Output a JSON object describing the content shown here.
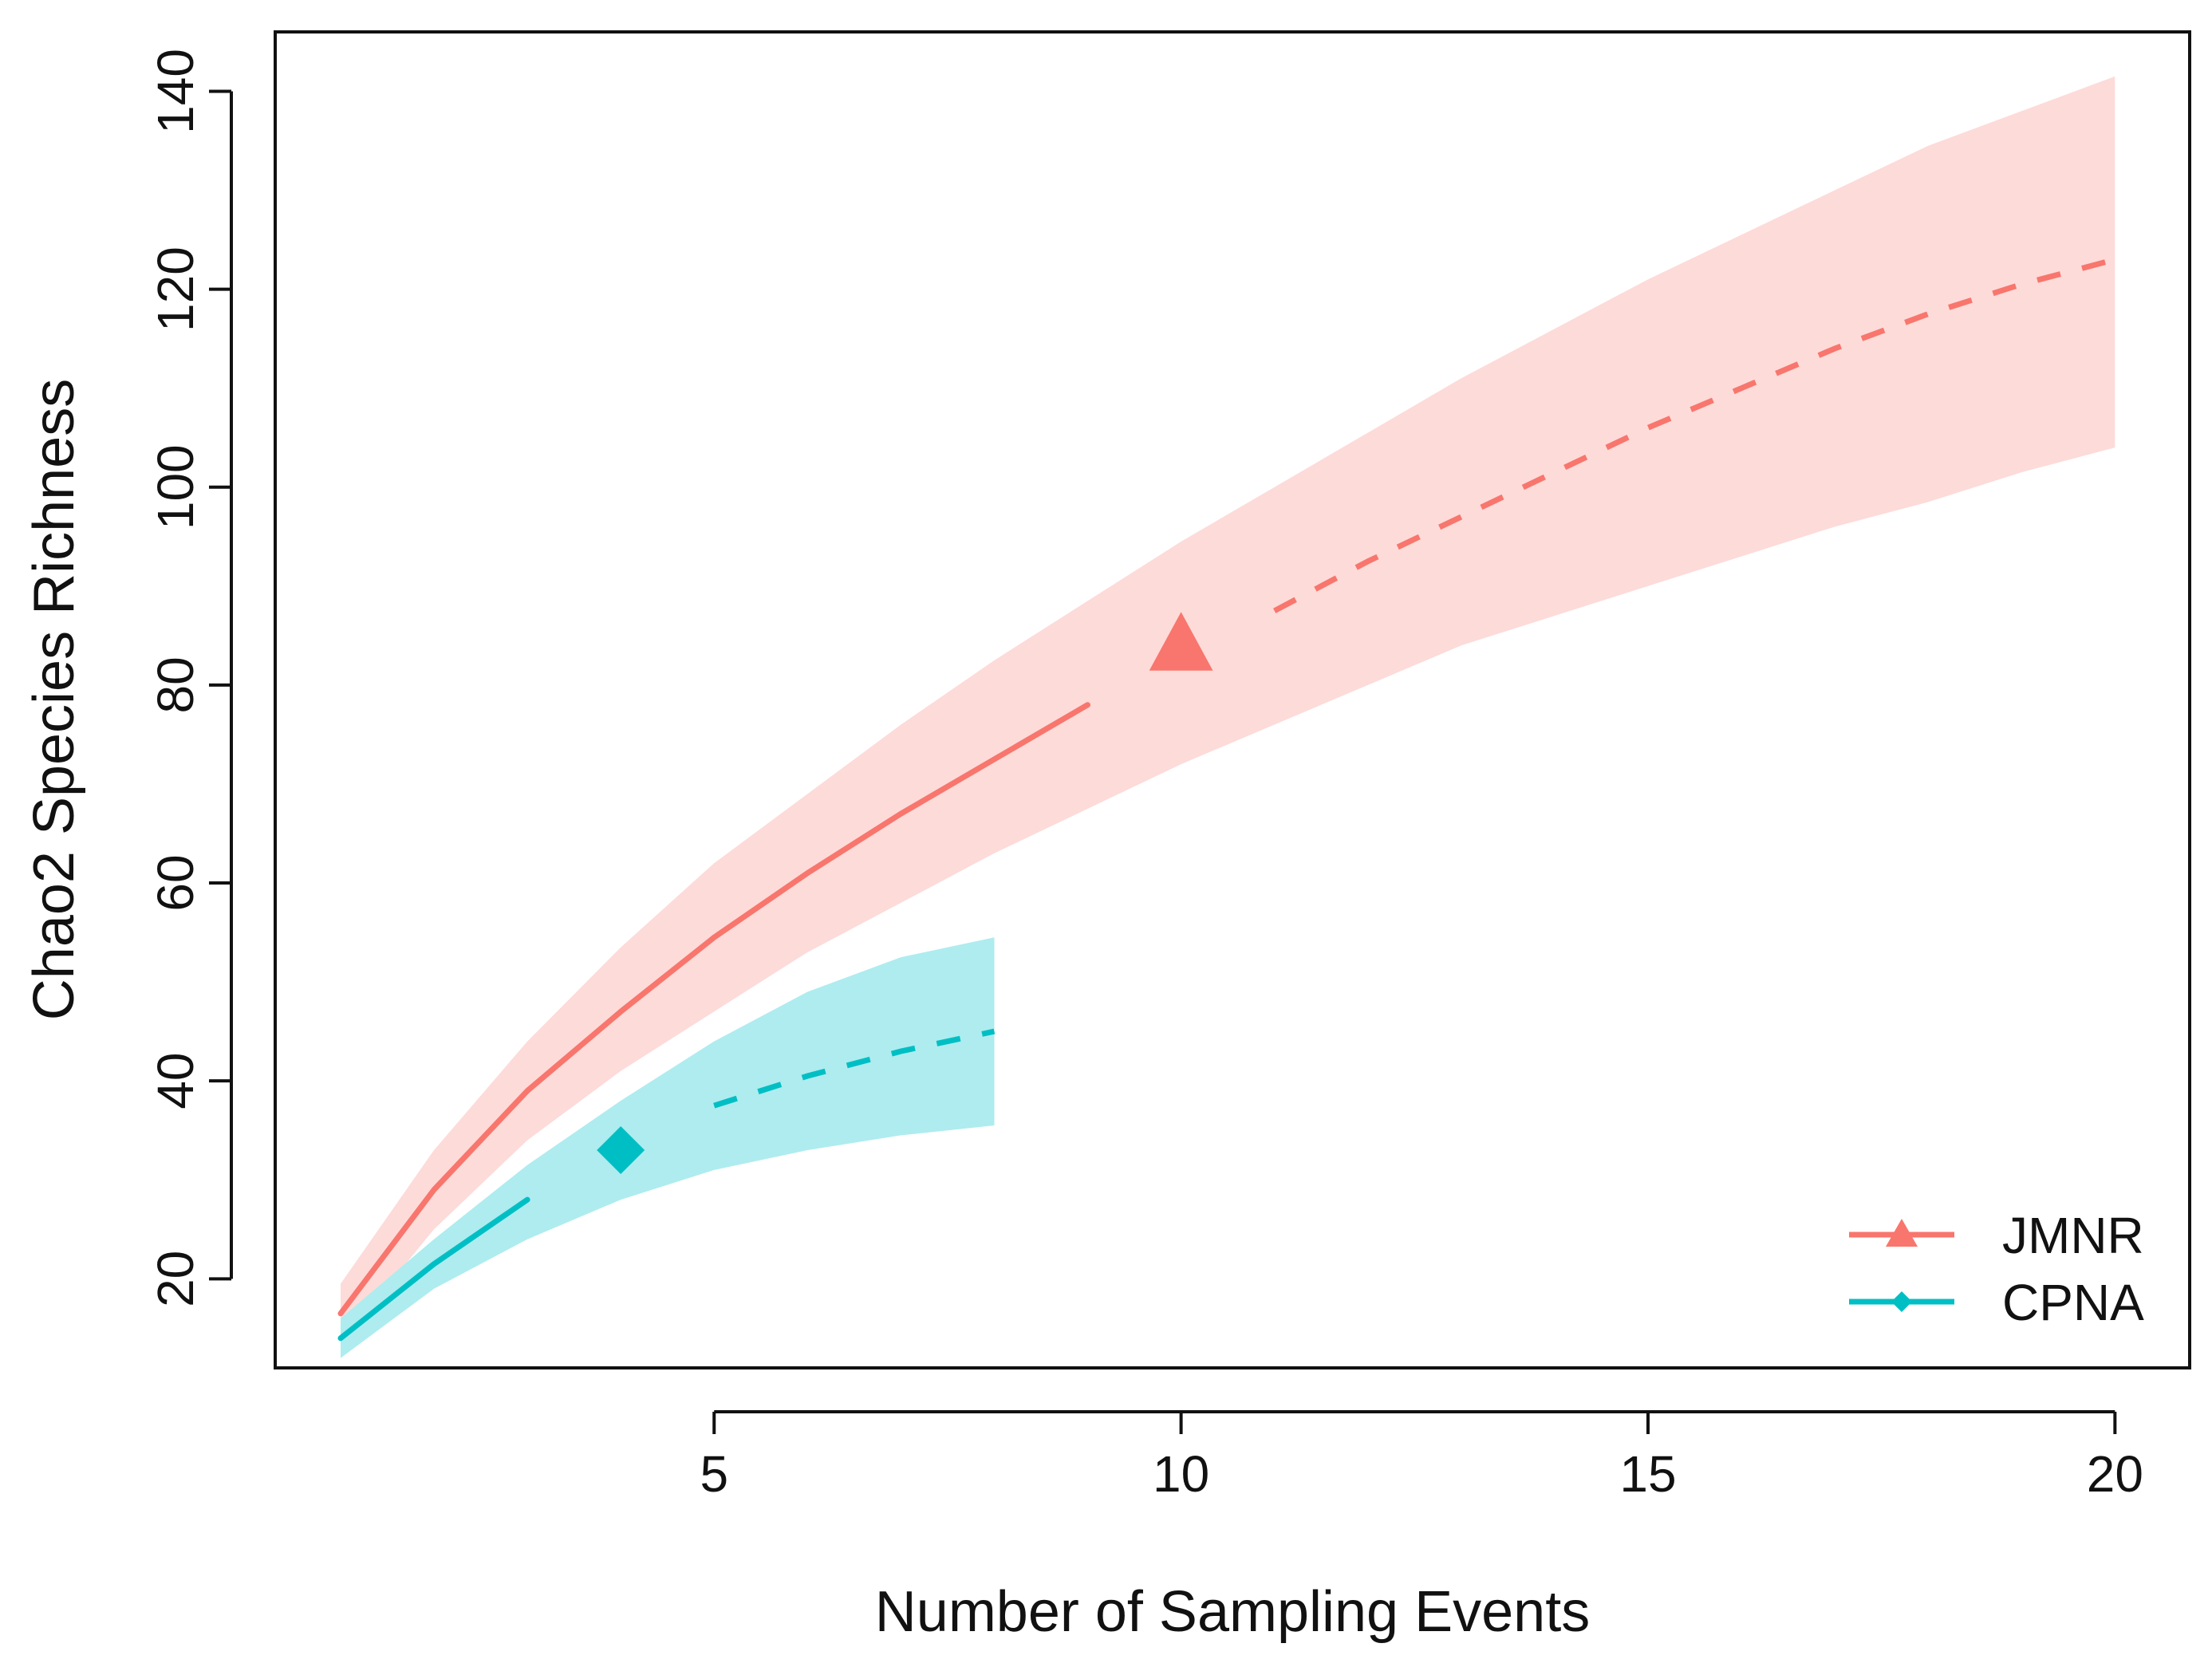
{
  "chart_data": {
    "type": "line",
    "title": "",
    "xlabel": "Number of Sampling Events",
    "ylabel": "Chao2 Species Richness",
    "xlim": [
      0.3,
      20.8
    ],
    "ylim": [
      11,
      146
    ],
    "xticks": [
      5,
      10,
      15,
      20
    ],
    "yticks": [
      20,
      40,
      60,
      80,
      100,
      120,
      140
    ],
    "grid": false,
    "legend_position": "bottom-right",
    "series": [
      {
        "name": "JMNR",
        "color": "#f8766d",
        "band_color": "#fddbd9",
        "marker": "triangle",
        "observed_point": {
          "x": 10,
          "y": 84
        },
        "interpolated": {
          "x": [
            1,
            2,
            3,
            4,
            5,
            6,
            7,
            8,
            9
          ],
          "y": [
            16.5,
            29,
            39,
            47,
            54.5,
            61,
            67,
            72.5,
            78
          ]
        },
        "extrapolated": {
          "x": [
            11,
            12,
            13,
            14,
            15,
            16,
            17,
            18,
            19,
            20
          ],
          "y": [
            87.5,
            92.5,
            97,
            101.5,
            106,
            110,
            114,
            117.5,
            120.5,
            123
          ]
        },
        "ci_lower": {
          "x": [
            1,
            2,
            3,
            4,
            5,
            6,
            7,
            8,
            9,
            10,
            11,
            12,
            13,
            14,
            15,
            16,
            17,
            18,
            19,
            20
          ],
          "y": [
            13.5,
            25,
            34,
            41,
            47,
            53,
            58,
            63,
            67.5,
            72,
            76,
            80,
            84,
            87,
            90,
            93,
            96,
            98.5,
            101.5,
            104
          ]
        },
        "ci_upper": {
          "x": [
            1,
            2,
            3,
            4,
            5,
            6,
            7,
            8,
            9,
            10,
            11,
            12,
            13,
            14,
            15,
            16,
            17,
            18,
            19,
            20
          ],
          "y": [
            19.5,
            33,
            44,
            53.5,
            62,
            69,
            76,
            82.5,
            88.5,
            94.5,
            100,
            105.5,
            111,
            116,
            121,
            125.5,
            130,
            134.5,
            138,
            141.5
          ]
        }
      },
      {
        "name": "CPNA",
        "color": "#00bfc4",
        "band_color": "#aeecef",
        "marker": "diamond",
        "observed_point": {
          "x": 4,
          "y": 33
        },
        "interpolated": {
          "x": [
            1,
            2,
            3
          ],
          "y": [
            14,
            21.5,
            28
          ]
        },
        "extrapolated": {
          "x": [
            5,
            6,
            7,
            8
          ],
          "y": [
            37.5,
            40.5,
            43,
            45
          ]
        },
        "ci_lower": {
          "x": [
            1,
            2,
            3,
            4,
            5,
            6,
            7,
            8
          ],
          "y": [
            12,
            19,
            24,
            28,
            31,
            33,
            34.5,
            35.5
          ]
        },
        "ci_upper": {
          "x": [
            1,
            2,
            3,
            4,
            5,
            6,
            7,
            8
          ],
          "y": [
            16,
            24,
            31.5,
            38,
            44,
            49,
            52.5,
            54.5
          ]
        }
      }
    ]
  }
}
